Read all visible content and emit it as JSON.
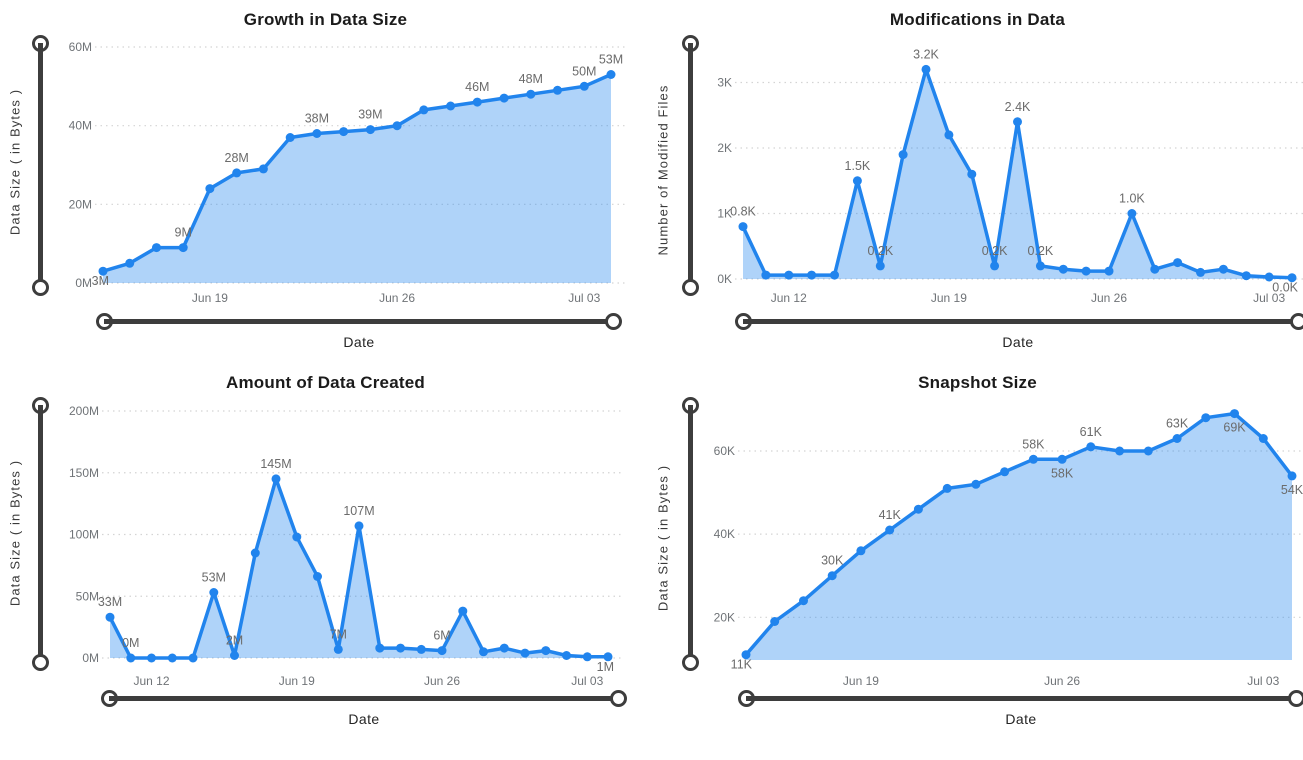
{
  "colors": {
    "line": "#2184ED",
    "area_fill": "#A9D2F7",
    "slider": "#3d3d3d",
    "grid": "#d4d4d4",
    "title": "#1b1b1b",
    "tick_label": "#6f7377",
    "data_label": "#6b6b6b",
    "axis_title": "#3a3a3a"
  },
  "chart_data": [
    {
      "type": "area",
      "title": "Growth in Data Size",
      "xlabel": "Date",
      "ylabel": "Data Size ( in Bytes )",
      "unit": "M",
      "legend": "none",
      "grid": "horizontal-dotted",
      "x": [
        "Jun 15",
        "Jun 16",
        "Jun 17",
        "Jun 18",
        "Jun 19",
        "Jun 20",
        "Jun 21",
        "Jun 22",
        "Jun 23",
        "Jun 24",
        "Jun 25",
        "Jun 26",
        "Jun 27",
        "Jun 28",
        "Jun 29",
        "Jun 30",
        "Jul 01",
        "Jul 02",
        "Jul 03",
        "Jul 04"
      ],
      "values": [
        3,
        5,
        9,
        9,
        24,
        28,
        29,
        37,
        38,
        38.5,
        39,
        40,
        44,
        45,
        46,
        47,
        48,
        49,
        50,
        53
      ],
      "ylim": [
        0,
        63
      ],
      "ytick_values": [
        0,
        20,
        40,
        60
      ],
      "ytick_labels": [
        "0M",
        "20M",
        "40M",
        "60M"
      ],
      "xticks": [
        {
          "i": 4,
          "label": "Jun 19"
        },
        {
          "i": 11,
          "label": "Jun 26"
        },
        {
          "i": 18,
          "label": "Jul 03"
        }
      ],
      "point_labels": [
        {
          "i": 0,
          "text": "3M",
          "pos": "end"
        },
        {
          "i": 3,
          "text": "9M",
          "pos": "above"
        },
        {
          "i": 5,
          "text": "28M",
          "pos": "above"
        },
        {
          "i": 8,
          "text": "38M",
          "pos": "above"
        },
        {
          "i": 10,
          "text": "39M",
          "pos": "above"
        },
        {
          "i": 14,
          "text": "46M",
          "pos": "above"
        },
        {
          "i": 16,
          "text": "48M",
          "pos": "above"
        },
        {
          "i": 18,
          "text": "50M",
          "pos": "above"
        },
        {
          "i": 19,
          "text": "53M",
          "pos": "above"
        }
      ]
    },
    {
      "type": "area",
      "title": "Modifications in Data",
      "xlabel": "Date",
      "ylabel": "Number of Modified Files",
      "unit": "K",
      "legend": "none",
      "grid": "horizontal-dotted",
      "x": [
        "Jun 10",
        "Jun 11",
        "Jun 12",
        "Jun 13",
        "Jun 14",
        "Jun 15",
        "Jun 16",
        "Jun 17",
        "Jun 18",
        "Jun 19",
        "Jun 20",
        "Jun 21",
        "Jun 22",
        "Jun 23",
        "Jun 24",
        "Jun 25",
        "Jun 26",
        "Jun 27",
        "Jun 28",
        "Jun 29",
        "Jun 30",
        "Jul 01",
        "Jul 02",
        "Jul 03",
        "Jul 04"
      ],
      "values": [
        0.8,
        0.06,
        0.06,
        0.06,
        0.06,
        1.5,
        0.2,
        1.9,
        3.2,
        2.2,
        1.6,
        0.2,
        2.4,
        0.2,
        0.15,
        0.12,
        0.12,
        1.0,
        0.15,
        0.25,
        0.1,
        0.15,
        0.05,
        0.03,
        0.02
      ],
      "ylim": [
        0,
        3.3
      ],
      "ytick_values": [
        0,
        1,
        2,
        3
      ],
      "ytick_labels": [
        "0K",
        "1K",
        "2K",
        "3K"
      ],
      "xticks": [
        {
          "i": 2,
          "label": "Jun 12"
        },
        {
          "i": 9,
          "label": "Jun 19"
        },
        {
          "i": 16,
          "label": "Jun 26"
        },
        {
          "i": 23,
          "label": "Jul 03"
        }
      ],
      "point_labels": [
        {
          "i": 0,
          "text": "0.8K",
          "pos": "above"
        },
        {
          "i": 5,
          "text": "1.5K",
          "pos": "above"
        },
        {
          "i": 6,
          "text": "0.2K",
          "pos": "above"
        },
        {
          "i": 8,
          "text": "3.2K",
          "pos": "above"
        },
        {
          "i": 11,
          "text": "0.2K",
          "pos": "above"
        },
        {
          "i": 12,
          "text": "2.4K",
          "pos": "above"
        },
        {
          "i": 13,
          "text": "0.2K",
          "pos": "above"
        },
        {
          "i": 17,
          "text": "1.0K",
          "pos": "above"
        },
        {
          "i": 24,
          "text": "0.0K",
          "pos": "end"
        }
      ]
    },
    {
      "type": "area",
      "title": "Amount of Data Created",
      "xlabel": "Date",
      "ylabel": "Data Size ( in Bytes )",
      "unit": "M",
      "legend": "none",
      "grid": "horizontal-dotted",
      "x": [
        "Jun 10",
        "Jun 11",
        "Jun 12",
        "Jun 13",
        "Jun 14",
        "Jun 15",
        "Jun 16",
        "Jun 17",
        "Jun 18",
        "Jun 19",
        "Jun 20",
        "Jun 21",
        "Jun 22",
        "Jun 23",
        "Jun 24",
        "Jun 25",
        "Jun 26",
        "Jun 27",
        "Jun 28",
        "Jun 29",
        "Jun 30",
        "Jul 01",
        "Jul 02",
        "Jul 03",
        "Jul 04"
      ],
      "values": [
        33,
        0,
        0,
        0,
        0,
        53,
        2,
        85,
        145,
        98,
        66,
        7,
        107,
        8,
        8,
        7,
        6,
        38,
        5,
        8,
        4,
        6,
        2,
        1,
        1
      ],
      "ylim": [
        0,
        205
      ],
      "ytick_values": [
        0,
        50,
        100,
        150,
        200
      ],
      "ytick_labels": [
        "0M",
        "50M",
        "100M",
        "150M",
        "200M"
      ],
      "xticks": [
        {
          "i": 2,
          "label": "Jun 12"
        },
        {
          "i": 9,
          "label": "Jun 19"
        },
        {
          "i": 16,
          "label": "Jun 26"
        },
        {
          "i": 23,
          "label": "Jul 03"
        }
      ],
      "point_labels": [
        {
          "i": 0,
          "text": "33M",
          "pos": "above"
        },
        {
          "i": 1,
          "text": "0M",
          "pos": "above"
        },
        {
          "i": 5,
          "text": "53M",
          "pos": "above"
        },
        {
          "i": 6,
          "text": "2M",
          "pos": "above"
        },
        {
          "i": 8,
          "text": "145M",
          "pos": "above"
        },
        {
          "i": 11,
          "text": "7M",
          "pos": "above"
        },
        {
          "i": 12,
          "text": "107M",
          "pos": "above"
        },
        {
          "i": 16,
          "text": "6M",
          "pos": "above"
        },
        {
          "i": 24,
          "text": "1M",
          "pos": "end"
        }
      ]
    },
    {
      "type": "area",
      "title": "Snapshot Size",
      "xlabel": "Date",
      "ylabel": "Data Size ( in Bytes )",
      "unit": "K",
      "legend": "none",
      "grid": "horizontal-dotted",
      "x": [
        "Jun 15",
        "Jun 16",
        "Jun 17",
        "Jun 18",
        "Jun 19",
        "Jun 20",
        "Jun 21",
        "Jun 22",
        "Jun 23",
        "Jun 24",
        "Jun 25",
        "Jun 26",
        "Jun 27",
        "Jun 28",
        "Jun 29",
        "Jun 30",
        "Jul 01",
        "Jul 02",
        "Jul 03",
        "Jul 04"
      ],
      "values": [
        11,
        19,
        24,
        30,
        36,
        41,
        46,
        51,
        52,
        55,
        58,
        58,
        61,
        60,
        60,
        63,
        68,
        69,
        63,
        54
      ],
      "ylim": [
        10,
        72
      ],
      "ytick_values": [
        20,
        40,
        60
      ],
      "ytick_labels": [
        "20K",
        "40K",
        "60K"
      ],
      "xticks": [
        {
          "i": 4,
          "label": "Jun 19"
        },
        {
          "i": 11,
          "label": "Jun 26"
        },
        {
          "i": 18,
          "label": "Jul 03"
        }
      ],
      "point_labels": [
        {
          "i": 0,
          "text": "11K",
          "pos": "end"
        },
        {
          "i": 3,
          "text": "30K",
          "pos": "above"
        },
        {
          "i": 5,
          "text": "41K",
          "pos": "above"
        },
        {
          "i": 10,
          "text": "58K",
          "pos": "above"
        },
        {
          "i": 11,
          "text": "58K",
          "pos": "below"
        },
        {
          "i": 12,
          "text": "61K",
          "pos": "above"
        },
        {
          "i": 15,
          "text": "63K",
          "pos": "above"
        },
        {
          "i": 17,
          "text": "69K",
          "pos": "below"
        },
        {
          "i": 19,
          "text": "54K",
          "pos": "below"
        }
      ]
    }
  ]
}
